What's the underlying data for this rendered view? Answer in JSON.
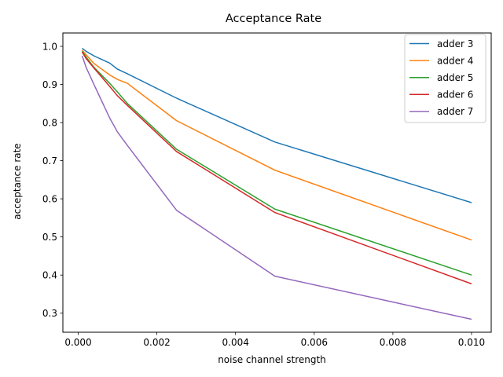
{
  "chart_data": {
    "type": "line",
    "title": "Acceptance Rate",
    "xlabel": "noise channel strength",
    "ylabel": "acceptance rate",
    "xlim": [
      -0.00039,
      0.0105
    ],
    "ylim": [
      0.25,
      1.035
    ],
    "x_ticks": [
      0.0,
      0.002,
      0.004,
      0.006,
      0.008,
      0.01
    ],
    "x_tick_labels": [
      "0.000",
      "0.002",
      "0.004",
      "0.006",
      "0.008",
      "0.010"
    ],
    "y_ticks": [
      0.3,
      0.4,
      0.5,
      0.6,
      0.7,
      0.8,
      0.9,
      1.0
    ],
    "y_tick_labels": [
      "0.3",
      "0.4",
      "0.5",
      "0.6",
      "0.7",
      "0.8",
      "0.9",
      "1.0"
    ],
    "grid": false,
    "legend_position": "top-right",
    "x": [
      0.0001,
      0.0002,
      0.0004,
      0.0008,
      0.001,
      0.00125,
      0.0025,
      0.005,
      0.01
    ],
    "series": [
      {
        "name": "adder 3",
        "color": "#1f77b4",
        "values": [
          0.995,
          0.987,
          0.975,
          0.956,
          0.94,
          0.928,
          0.864,
          0.749,
          0.59
        ]
      },
      {
        "name": "adder 4",
        "color": "#ff7f0e",
        "values": [
          0.99,
          0.978,
          0.955,
          0.925,
          0.913,
          0.903,
          0.805,
          0.675,
          0.492
        ]
      },
      {
        "name": "adder 5",
        "color": "#2ca02c",
        "values": [
          0.987,
          0.972,
          0.945,
          0.903,
          0.88,
          0.85,
          0.73,
          0.573,
          0.4
        ]
      },
      {
        "name": "adder 6",
        "color": "#d62728",
        "values": [
          0.985,
          0.968,
          0.943,
          0.895,
          0.87,
          0.845,
          0.724,
          0.564,
          0.377
        ]
      },
      {
        "name": "adder 7",
        "color": "#9467bd",
        "values": [
          0.975,
          0.945,
          0.9,
          0.812,
          0.775,
          0.74,
          0.57,
          0.397,
          0.284
        ]
      }
    ]
  }
}
